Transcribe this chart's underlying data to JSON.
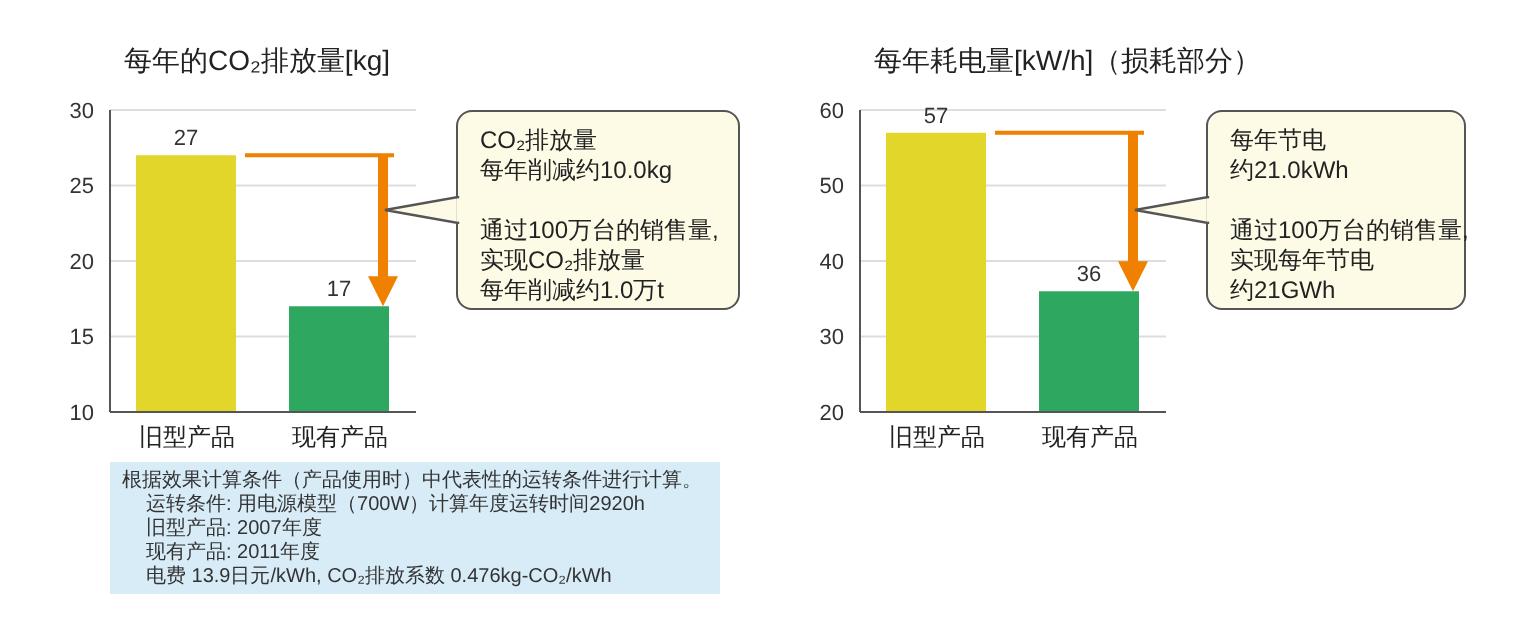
{
  "chart_data": [
    {
      "type": "bar",
      "title": "每年的CO₂排放量[kg]",
      "categories": [
        "旧型产品",
        "现有产品"
      ],
      "values": [
        27,
        17
      ],
      "colors": [
        "#e2d62a",
        "#2ea860"
      ],
      "ylim": [
        10,
        30
      ],
      "yticks": [
        10,
        15,
        20,
        25,
        30
      ],
      "grid": "y",
      "data_labels": true,
      "annotations": [
        "CO₂排放量",
        "每年削减约10.0kg",
        "通过100万台的销售量,",
        "实现CO₂排放量",
        "每年削减约1.0万t"
      ]
    },
    {
      "type": "bar",
      "title": "每年耗电量[kW/h]（损耗部分）",
      "categories": [
        "旧型产品",
        "现有产品"
      ],
      "values": [
        57,
        36
      ],
      "colors": [
        "#e2d62a",
        "#2ea860"
      ],
      "ylim": [
        20,
        60
      ],
      "yticks": [
        20,
        30,
        40,
        50,
        60
      ],
      "grid": "y",
      "data_labels": true,
      "annotations": [
        "每年节电",
        "约21.0kWh",
        "通过100万台的销售量,",
        "实现每年节电",
        "约21GWh"
      ]
    },
    {
      "type": "other",
      "annotations": [
        "根据效果计算条件（产品使用时）中代表性的运转条件进行计算。",
        "运转条件: 用电源模型（700W）计算年度运转时间2920h",
        "旧型产品: 2007年度",
        "现有产品: 2011年度",
        "电费 13.9日元/kWh, CO₂排放系数 0.476kg-CO₂/kWh"
      ]
    }
  ]
}
